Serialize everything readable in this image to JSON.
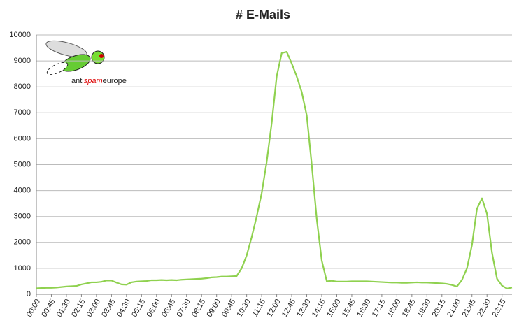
{
  "chart_data": {
    "type": "line",
    "title": "# E-Mails",
    "logo_parts": [
      "anti",
      "spam",
      "europe"
    ],
    "categories": [
      "00:00",
      null,
      null,
      "00:45",
      null,
      null,
      "01:30",
      null,
      null,
      "02:15",
      null,
      null,
      "03:00",
      null,
      null,
      "03:45",
      null,
      null,
      "04:30",
      null,
      null,
      "05:15",
      null,
      null,
      "06:00",
      null,
      null,
      "06:45",
      null,
      null,
      "07:30",
      null,
      null,
      "08:15",
      null,
      null,
      "09:00",
      null,
      null,
      "09:45",
      null,
      null,
      "10:30",
      null,
      null,
      "11:15",
      null,
      null,
      "12:00",
      null,
      null,
      "12:45",
      null,
      null,
      "13:30",
      null,
      null,
      "14:15",
      null,
      null,
      "15:00",
      null,
      null,
      "15:45",
      null,
      null,
      "16:30",
      null,
      null,
      "17:15",
      null,
      null,
      "18:00",
      null,
      null,
      "18:45",
      null,
      null,
      "19:30",
      null,
      null,
      "20:15",
      null,
      null,
      "21:00",
      null,
      null,
      "21:45",
      null,
      null,
      "22:30",
      null,
      null,
      "23:15",
      null,
      null
    ],
    "values": [
      230,
      240,
      250,
      250,
      260,
      280,
      300,
      310,
      320,
      380,
      420,
      460,
      460,
      480,
      530,
      530,
      450,
      380,
      370,
      460,
      490,
      500,
      510,
      540,
      540,
      550,
      540,
      550,
      540,
      560,
      570,
      580,
      590,
      600,
      620,
      650,
      660,
      680,
      680,
      690,
      700,
      1000,
      1500,
      2200,
      3000,
      3900,
      5100,
      6600,
      8400,
      9300,
      9350,
      8900,
      8400,
      7800,
      6900,
      5000,
      2900,
      1300,
      500,
      520,
      490,
      490,
      490,
      500,
      500,
      500,
      500,
      490,
      480,
      470,
      460,
      450,
      450,
      440,
      440,
      450,
      460,
      450,
      450,
      440,
      430,
      420,
      400,
      360,
      300,
      550,
      1000,
      1900,
      3300,
      3700,
      3100,
      1600,
      600,
      330,
      220,
      260
    ],
    "color": "#8fd14f",
    "ylim": [
      0,
      10000
    ],
    "yticks": [
      0,
      1000,
      2000,
      3000,
      4000,
      5000,
      6000,
      7000,
      8000,
      9000,
      10000
    ],
    "grid": true
  }
}
